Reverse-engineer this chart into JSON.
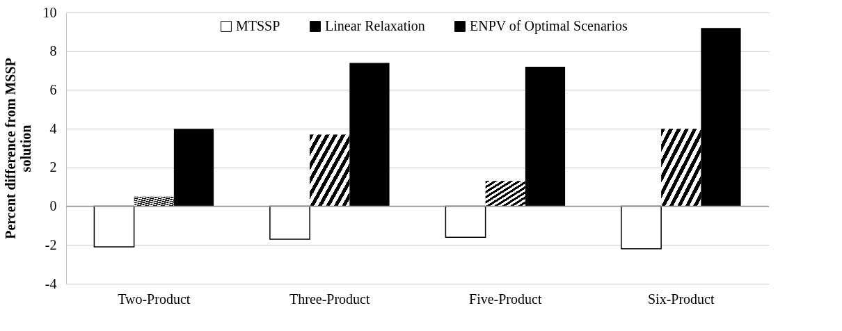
{
  "chart_data": {
    "type": "bar",
    "ylabel": "Percent difference from  MSSP solution",
    "categories": [
      "Two-Product",
      "Three-Product",
      "Five-Product",
      "Six-Product"
    ],
    "series": [
      {
        "name": "MTSSP",
        "color": "#ffffff",
        "values": [
          -2.1,
          -1.7,
          -1.6,
          -2.2
        ]
      },
      {
        "name": "Linear Relaxation",
        "color": "#000000",
        "values": [
          0.5,
          3.7,
          1.3,
          4.0
        ]
      },
      {
        "name": "ENPV of Optimal Scenarios",
        "color": "#000000",
        "values": [
          4.0,
          7.4,
          7.2,
          9.2
        ]
      }
    ],
    "ylim": [
      -4,
      10
    ],
    "yticks": [
      -4,
      -2,
      0,
      2,
      4,
      6,
      8,
      10
    ],
    "grid": "y",
    "legend": "top"
  }
}
